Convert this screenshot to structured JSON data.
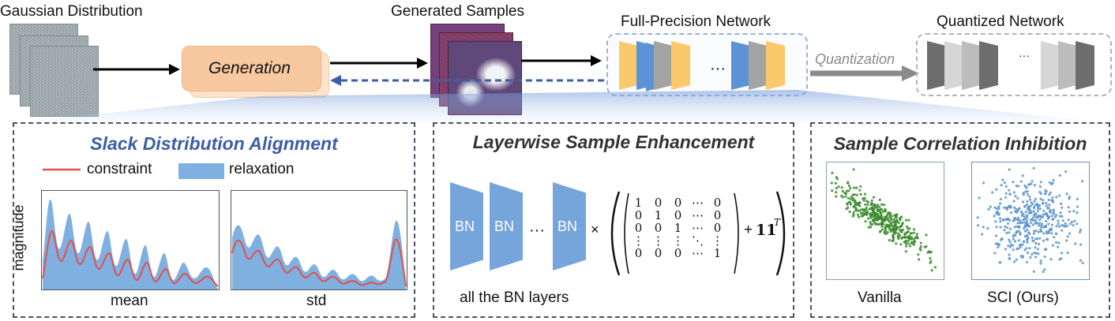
{
  "top": {
    "gaussian_label": "Gaussian Distribution",
    "generation_label": "Generation",
    "samples_label": "Generated Samples",
    "fp_label": "Full-Precision Network",
    "quant_arrow_label": "Quantization",
    "quant_label": "Quantized Network",
    "ellipsis": "···"
  },
  "panel1": {
    "title": "Slack Distribution Alignment",
    "legend_constraint": "constraint",
    "legend_relaxation": "relaxation",
    "ylabel": "magnitude",
    "xlabel_left": "mean",
    "xlabel_right": "std"
  },
  "panel2": {
    "title": "Layerwise Sample Enhancement",
    "bn_label": "BN",
    "dots": "···",
    "times": "×",
    "plus": "+",
    "ones": "𝟏𝟏",
    "transpose": "T",
    "caption": "all the BN layers",
    "matrix": [
      [
        "1",
        "0",
        "0",
        "⋯",
        "0"
      ],
      [
        "0",
        "1",
        "0",
        "⋯",
        "0"
      ],
      [
        "0",
        "0",
        "1",
        "⋯",
        "0"
      ],
      [
        "⋮",
        "⋮",
        "⋮",
        "⋱",
        "⋮"
      ],
      [
        "0",
        "0",
        "0",
        "⋯",
        "1"
      ]
    ]
  },
  "panel3": {
    "title": "Sample Correlation Inhibition",
    "label_left": "Vanilla",
    "label_right": "SCI (Ours)"
  },
  "colors": {
    "accent_blue": "#3b5ea8",
    "generation_fill": "#f8c9a1",
    "layer_yellow": "#fac96a",
    "layer_blue": "#5b93d6",
    "layer_gray": "#a3a3a3",
    "quant_dark": "#6d6d6d",
    "quant_light": "#d6d6d6",
    "vanilla_points": "#3a8a2d",
    "sci_points": "#5b94cc",
    "constraint_line": "#e05050",
    "relaxation_band": "#80b0e0"
  }
}
